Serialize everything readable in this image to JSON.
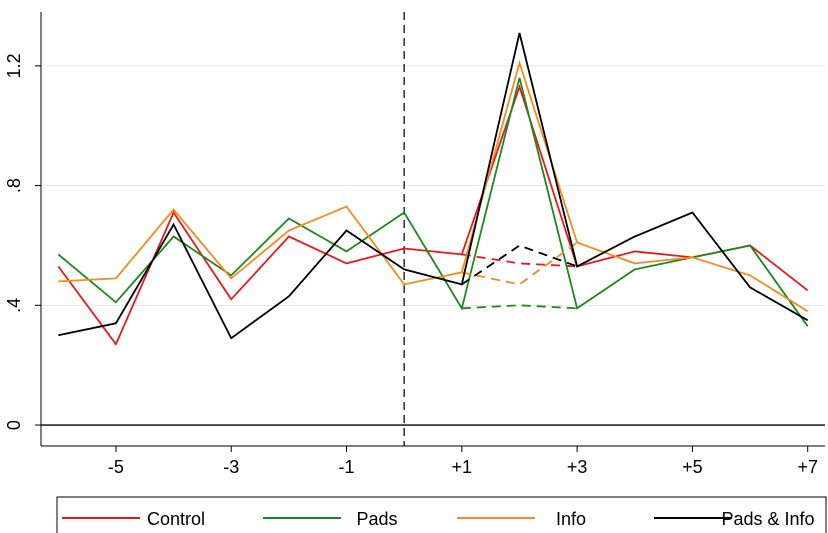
{
  "chart_data": {
    "type": "line",
    "title": "",
    "xlabel": "",
    "ylabel": "",
    "xlim": [
      -6.3,
      7.3
    ],
    "ylim": [
      -0.07,
      1.38
    ],
    "x": [
      -6,
      -5,
      -4,
      -3,
      -2,
      -1,
      0,
      1,
      2,
      3,
      4,
      5,
      6,
      7
    ],
    "x_ticks": [
      {
        "value": -5,
        "label": "-5"
      },
      {
        "value": -3,
        "label": "-3"
      },
      {
        "value": -1,
        "label": "-1"
      },
      {
        "value": 1,
        "label": "+1"
      },
      {
        "value": 3,
        "label": "+3"
      },
      {
        "value": 5,
        "label": "+5"
      },
      {
        "value": 7,
        "label": "+7"
      }
    ],
    "y_ticks": [
      {
        "value": 0,
        "label": "0"
      },
      {
        "value": 0.4,
        "label": ".4"
      },
      {
        "value": 0.8,
        "label": ".8"
      },
      {
        "value": 1.2,
        "label": "1.2"
      }
    ],
    "grid": "horizontal",
    "reference_line": {
      "x": 0,
      "style": "dashed"
    },
    "legend_position": "bottom",
    "series": [
      {
        "name": "Control",
        "color": "#e8191c",
        "values": [
          0.53,
          0.27,
          0.71,
          0.42,
          0.63,
          0.54,
          0.59,
          0.57,
          1.13,
          0.53,
          0.58,
          0.56,
          0.6,
          0.45
        ],
        "alt_path": {
          "x": [
            1,
            2,
            3
          ],
          "values": [
            0.57,
            0.54,
            0.53
          ]
        }
      },
      {
        "name": "Pads",
        "color": "#1a8a1a",
        "values": [
          0.57,
          0.41,
          0.63,
          0.5,
          0.69,
          0.58,
          0.71,
          0.39,
          1.16,
          0.39,
          0.52,
          0.56,
          0.6,
          0.33
        ],
        "alt_path": {
          "x": [
            1,
            2,
            3
          ],
          "values": [
            0.39,
            0.4,
            0.39
          ]
        }
      },
      {
        "name": "Info",
        "color": "#f28c1a",
        "values": [
          0.48,
          0.49,
          0.72,
          0.49,
          0.65,
          0.73,
          0.47,
          0.51,
          1.21,
          0.61,
          0.54,
          0.56,
          0.5,
          0.38
        ],
        "alt_path": {
          "x": [
            1,
            2,
            3
          ],
          "values": [
            0.51,
            0.47,
            0.61
          ]
        }
      },
      {
        "name": "Pads & Info",
        "color": "#000000",
        "values": [
          0.3,
          0.34,
          0.67,
          0.29,
          0.43,
          0.65,
          0.52,
          0.47,
          1.31,
          0.53,
          0.63,
          0.71,
          0.46,
          0.35
        ],
        "alt_path": {
          "x": [
            1,
            2,
            3
          ],
          "values": [
            0.47,
            0.6,
            0.53
          ]
        }
      }
    ]
  }
}
